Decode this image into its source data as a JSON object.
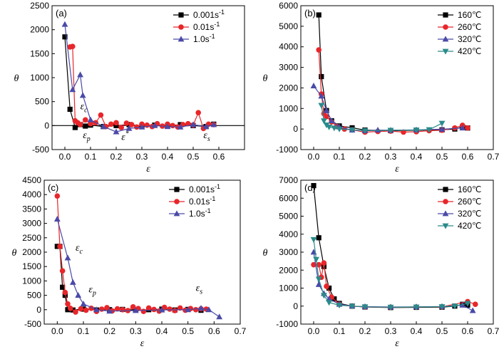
{
  "figure": {
    "colors": {
      "black": "#000000",
      "red": "#e8262a",
      "blue": "#4a4aa8",
      "teal": "#2a8b8b"
    }
  },
  "chart_data": [
    {
      "id": "a",
      "type": "line",
      "panel_label": "(a)",
      "xlabel": "ε",
      "ylabel": "θ",
      "xlim": [
        -0.05,
        0.7
      ],
      "ylim": [
        -500,
        2500
      ],
      "xticks": [
        0.0,
        0.1,
        0.2,
        0.3,
        0.4,
        0.5,
        0.6
      ],
      "yticks": [
        -500,
        0,
        500,
        1000,
        1500,
        2000,
        2500
      ],
      "tick_labels_x": [
        "0.0",
        "0.1",
        "0.2",
        "0.3",
        "0.4",
        "0.5",
        "0.6"
      ],
      "tick_labels_y": [
        "-500",
        "0",
        "500",
        "1000",
        "1500",
        "2000",
        "2500"
      ],
      "zero_line": true,
      "legend": {
        "position": "top-right",
        "entries": [
          "0.001s-1",
          "0.01s-1",
          "1.0s-1"
        ],
        "display": [
          "0.001s",
          "0.01s",
          "1.0s"
        ],
        "suffix": "-1"
      },
      "series": [
        {
          "name": "0.001s-1",
          "color": "#000000",
          "marker": "square",
          "x": [
            0.0,
            0.02,
            0.04,
            0.06,
            0.08,
            0.1,
            0.15,
            0.2,
            0.25,
            0.3,
            0.35,
            0.4,
            0.45,
            0.5,
            0.55,
            0.58
          ],
          "y": [
            1850,
            340,
            -40,
            20,
            -10,
            10,
            -20,
            0,
            20,
            -10,
            10,
            -10,
            20,
            0,
            -20,
            30
          ]
        },
        {
          "name": "0.01s-1",
          "color": "#e8262a",
          "marker": "circle",
          "x": [
            0.02,
            0.03,
            0.04,
            0.05,
            0.06,
            0.08,
            0.1,
            0.12,
            0.14,
            0.16,
            0.18,
            0.2,
            0.22,
            0.24,
            0.26,
            0.28,
            0.3,
            0.32,
            0.34,
            0.36,
            0.38,
            0.4,
            0.42,
            0.44,
            0.46,
            0.48,
            0.5,
            0.52,
            0.54,
            0.56,
            0.58
          ],
          "y": [
            1640,
            1650,
            100,
            60,
            20,
            120,
            40,
            60,
            220,
            -20,
            30,
            60,
            -40,
            50,
            20,
            -30,
            30,
            10,
            -20,
            40,
            -10,
            30,
            0,
            -30,
            20,
            40,
            10,
            270,
            -60,
            30,
            20
          ]
        },
        {
          "name": "1.0s-1",
          "color": "#4a4aa8",
          "marker": "triangle",
          "x": [
            0.0,
            0.03,
            0.06,
            0.07,
            0.1,
            0.15,
            0.2,
            0.25,
            0.3,
            0.35,
            0.4,
            0.45,
            0.5,
            0.55,
            0.58
          ],
          "y": [
            2110,
            750,
            1060,
            630,
            120,
            -20,
            -130,
            -60,
            -30,
            0,
            -20,
            -30,
            20,
            -20,
            20
          ]
        }
      ],
      "annotations": [
        {
          "text": "ε",
          "sub": "c",
          "x": 0.06,
          "y": 340
        },
        {
          "text": "ε",
          "sub": "p",
          "x": 0.07,
          "y": -260
        },
        {
          "text": "ε",
          "sup": "*",
          "x": 0.22,
          "y": -300
        },
        {
          "text": "ε",
          "sub": "s",
          "x": 0.54,
          "y": -260
        }
      ]
    },
    {
      "id": "b",
      "type": "line",
      "panel_label": "(b)",
      "xlabel": "ε",
      "ylabel": "θ",
      "xlim": [
        -0.05,
        0.7
      ],
      "ylim": [
        -1000,
        6000
      ],
      "xticks": [
        0.0,
        0.1,
        0.2,
        0.3,
        0.4,
        0.5,
        0.6,
        0.7
      ],
      "yticks": [
        -1000,
        0,
        1000,
        2000,
        3000,
        4000,
        5000,
        6000
      ],
      "tick_labels_x": [
        "0.0",
        "0.1",
        "0.2",
        "0.3",
        "0.4",
        "0.5",
        "0.6",
        "0.7"
      ],
      "tick_labels_y": [
        "-1000",
        "0",
        "1000",
        "2000",
        "3000",
        "4000",
        "5000",
        "6000"
      ],
      "zero_line": false,
      "legend": {
        "position": "top-right",
        "entries": [
          "160℃",
          "260℃",
          "320℃",
          "420℃"
        ],
        "display": [
          "160℃",
          "260℃",
          "320℃",
          "420℃"
        ],
        "suffix": ""
      },
      "series": [
        {
          "name": "160℃",
          "color": "#000000",
          "marker": "square",
          "x": [
            0.02,
            0.03,
            0.05,
            0.07,
            0.1,
            0.15,
            0.2,
            0.3,
            0.4,
            0.5,
            0.55,
            0.58,
            0.6
          ],
          "y": [
            5550,
            2550,
            900,
            400,
            150,
            60,
            -50,
            -80,
            -60,
            -40,
            0,
            100,
            50
          ]
        },
        {
          "name": "260℃",
          "color": "#e8262a",
          "marker": "circle",
          "x": [
            0.02,
            0.03,
            0.04,
            0.05,
            0.07,
            0.09,
            0.12,
            0.15,
            0.2,
            0.25,
            0.3,
            0.35,
            0.4,
            0.45,
            0.5,
            0.55,
            0.58,
            0.6
          ],
          "y": [
            3850,
            1700,
            750,
            600,
            350,
            120,
            0,
            -40,
            -150,
            -120,
            -100,
            -150,
            -130,
            -80,
            -60,
            50,
            180,
            50
          ]
        },
        {
          "name": "320℃",
          "color": "#4a4aa8",
          "marker": "triangle",
          "x": [
            0.0,
            0.03,
            0.05,
            0.07,
            0.1,
            0.15,
            0.2,
            0.25,
            0.3,
            0.4,
            0.5,
            0.58
          ],
          "y": [
            2100,
            1600,
            900,
            400,
            100,
            -50,
            -80,
            -50,
            -60,
            -40,
            -10,
            50
          ]
        },
        {
          "name": "420℃",
          "color": "#2a8b8b",
          "marker": "triangle-down",
          "x": [
            0.03,
            0.04,
            0.05,
            0.06,
            0.08,
            0.1,
            0.15,
            0.2,
            0.3,
            0.4,
            0.45,
            0.5
          ],
          "y": [
            1150,
            400,
            200,
            100,
            50,
            0,
            -40,
            -80,
            -60,
            -50,
            -30,
            280
          ]
        }
      ],
      "annotations": []
    },
    {
      "id": "c",
      "type": "line",
      "panel_label": "(c)",
      "xlabel": "ε",
      "ylabel": "θ",
      "xlim": [
        -0.05,
        0.7
      ],
      "ylim": [
        -500,
        4500
      ],
      "xticks": [
        0.0,
        0.1,
        0.2,
        0.3,
        0.4,
        0.5,
        0.6,
        0.7
      ],
      "yticks": [
        -500,
        0,
        500,
        1000,
        1500,
        2000,
        2500,
        3000,
        3500,
        4000,
        4500
      ],
      "tick_labels_x": [
        "0.0",
        "0.1",
        "0.2",
        "0.3",
        "0.4",
        "0.5",
        "0.6",
        "0.7"
      ],
      "tick_labels_y": [
        "-500",
        "0",
        "500",
        "1000",
        "1500",
        "2000",
        "2500",
        "3000",
        "3500",
        "4000",
        "4500"
      ],
      "zero_line": false,
      "legend": {
        "position": "top-right",
        "entries": [
          "0.001s-1",
          "0.01s-1",
          "1.0s-1"
        ],
        "display": [
          "0.001s",
          "0.01s",
          "1.0s"
        ],
        "suffix": "-1"
      },
      "series": [
        {
          "name": "0.001s-1",
          "color": "#000000",
          "marker": "square",
          "x": [
            0.0,
            0.01,
            0.02,
            0.03,
            0.04,
            0.06,
            0.1,
            0.15,
            0.2,
            0.25,
            0.3,
            0.35,
            0.4,
            0.45,
            0.5,
            0.55
          ],
          "y": [
            2200,
            2200,
            780,
            500,
            0,
            -10,
            20,
            -10,
            0,
            10,
            -10,
            0,
            20,
            -10,
            10,
            -20
          ]
        },
        {
          "name": "0.01s-1",
          "color": "#e8262a",
          "marker": "circle",
          "x": [
            0.0,
            0.01,
            0.02,
            0.03,
            0.04,
            0.05,
            0.07,
            0.09,
            0.11,
            0.13,
            0.15,
            0.17,
            0.19,
            0.21,
            0.23,
            0.25,
            0.27,
            0.29,
            0.31,
            0.33,
            0.35,
            0.37,
            0.39,
            0.41,
            0.43,
            0.45,
            0.47,
            0.49,
            0.51,
            0.53,
            0.55,
            0.57
          ],
          "y": [
            3950,
            2200,
            1350,
            600,
            200,
            50,
            -80,
            30,
            -20,
            50,
            -60,
            20,
            70,
            -40,
            30,
            0,
            -30,
            100,
            40,
            -60,
            60,
            10,
            -50,
            80,
            20,
            -30,
            60,
            -20,
            40,
            0,
            30,
            20
          ]
        },
        {
          "name": "1.0s-1",
          "color": "#4a4aa8",
          "marker": "triangle",
          "x": [
            0.0,
            0.04,
            0.06,
            0.08,
            0.1,
            0.15,
            0.2,
            0.3,
            0.4,
            0.5,
            0.55,
            0.58,
            0.62
          ],
          "y": [
            3150,
            1800,
            950,
            500,
            200,
            0,
            -50,
            -30,
            -10,
            0,
            50,
            0,
            -250
          ]
        }
      ],
      "annotations": [
        {
          "text": "ε",
          "sub": "c",
          "x": 0.07,
          "y": 2050
        },
        {
          "text": "ε",
          "sub": "p",
          "x": 0.12,
          "y": 600
        },
        {
          "text": "ε",
          "sub": "s",
          "x": 0.53,
          "y": 650
        }
      ]
    },
    {
      "id": "d",
      "type": "line",
      "panel_label": "(d)",
      "xlabel": "ε",
      "ylabel": "θ",
      "xlim": [
        -0.05,
        0.7
      ],
      "ylim": [
        -1000,
        7000
      ],
      "xticks": [
        0.0,
        0.1,
        0.2,
        0.3,
        0.4,
        0.5,
        0.6,
        0.7
      ],
      "yticks": [
        -1000,
        0,
        1000,
        2000,
        3000,
        4000,
        5000,
        6000,
        7000
      ],
      "tick_labels_x": [
        "0.0",
        "0.1",
        "0.2",
        "0.3",
        "0.4",
        "0.5",
        "0.6",
        "0.7"
      ],
      "tick_labels_y": [
        "-1000",
        "0",
        "1000",
        "2000",
        "3000",
        "4000",
        "5000",
        "6000",
        "7000"
      ],
      "zero_line": false,
      "legend": {
        "position": "top-right",
        "entries": [
          "160℃",
          "260℃",
          "320℃",
          "420℃"
        ],
        "display": [
          "160℃",
          "260℃",
          "320℃",
          "420℃"
        ],
        "suffix": ""
      },
      "series": [
        {
          "name": "160℃",
          "color": "#000000",
          "marker": "square",
          "x": [
            0.0,
            0.02,
            0.04,
            0.06,
            0.08,
            0.1,
            0.15,
            0.2,
            0.3,
            0.4,
            0.5,
            0.55,
            0.58,
            0.6
          ],
          "y": [
            6700,
            3800,
            2200,
            1000,
            400,
            150,
            0,
            -50,
            -80,
            -70,
            -60,
            0,
            100,
            50
          ]
        },
        {
          "name": "260℃",
          "color": "#e8262a",
          "marker": "circle",
          "x": [
            0.0,
            0.02,
            0.03,
            0.04,
            0.05,
            0.07,
            0.1,
            0.15,
            0.2,
            0.3,
            0.4,
            0.5,
            0.6,
            0.63
          ],
          "y": [
            2300,
            2300,
            1600,
            2400,
            1100,
            500,
            100,
            0,
            -50,
            -60,
            -50,
            -40,
            250,
            100
          ]
        },
        {
          "name": "320℃",
          "color": "#4a4aa8",
          "marker": "triangle",
          "x": [
            0.0,
            0.02,
            0.04,
            0.06,
            0.1,
            0.15,
            0.2,
            0.3,
            0.4,
            0.5,
            0.58,
            0.62
          ],
          "y": [
            3000,
            1200,
            700,
            400,
            100,
            0,
            -30,
            -50,
            -40,
            -20,
            50,
            -250
          ]
        },
        {
          "name": "420℃",
          "color": "#2a8b8b",
          "marker": "triangle-down",
          "x": [
            0.0,
            0.01,
            0.02,
            0.04,
            0.06,
            0.1,
            0.15,
            0.2,
            0.3,
            0.4,
            0.5,
            0.55,
            0.6
          ],
          "y": [
            3700,
            2600,
            1500,
            600,
            200,
            50,
            0,
            -40,
            -60,
            -50,
            -30,
            0,
            150
          ]
        }
      ],
      "annotations": []
    }
  ]
}
